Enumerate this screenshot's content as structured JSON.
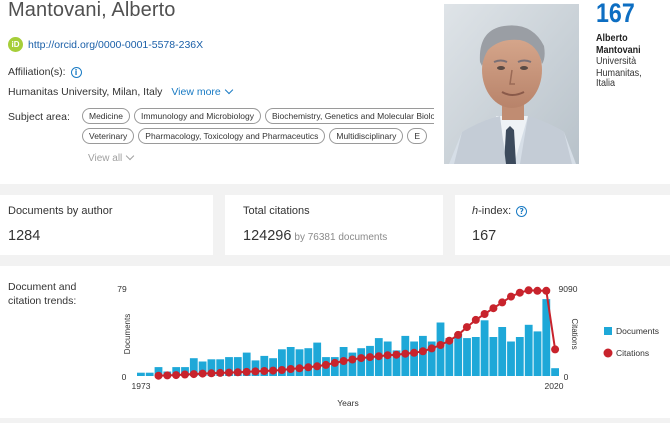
{
  "author": {
    "name": "Mantovani, Alberto",
    "orcid_badge": "iD",
    "orcid_url": "http://orcid.org/0000-0001-5578-236X",
    "affiliation_label": "Affiliation(s):",
    "affiliation_info_icon": "i",
    "affiliation": "Humanitas University, Milan, Italy",
    "view_more": "View more",
    "subject_label": "Subject area:",
    "subject_rows": [
      [
        "Medicine",
        "Immunology and Microbiology",
        "Biochemistry, Genetics and Molecular Biology"
      ],
      [
        "Veterinary",
        "Pharmacology, Toxicology and Pharmaceutics",
        "Multidisciplinary",
        "E"
      ]
    ],
    "view_all": "View all"
  },
  "stamp": {
    "number": "167",
    "first_name": "Alberto",
    "last_name": "Mantovani",
    "affiliation_line1": "Università",
    "affiliation_line2": "Humanitas, Italia"
  },
  "metrics": {
    "documents": {
      "title": "Documents by author",
      "value": "1284"
    },
    "citations": {
      "title": "Total citations",
      "value": "124296",
      "sub": "by 76381 documents"
    },
    "hindex": {
      "title_italic": "h",
      "title_rest": "-index:",
      "info_icon": "?",
      "value": "167"
    }
  },
  "trend": {
    "label_line1": "Document and",
    "label_line2": "citation trends:"
  },
  "chart_data": {
    "type": "bar",
    "title": "",
    "xlabel": "Years",
    "ylabel": "Documents",
    "y2label": "Citations",
    "ylim": [
      0,
      79
    ],
    "y2lim": [
      0,
      9090
    ],
    "yticks": [
      "0",
      "79"
    ],
    "y2ticks": [
      "0",
      "9090"
    ],
    "xtick_labels": [
      "1973",
      "2020"
    ],
    "legend_position": "right",
    "colors": {
      "documents": "#1ea8d8",
      "citations": "#c8232c"
    },
    "categories": [
      1973,
      1974,
      1975,
      1976,
      1977,
      1978,
      1979,
      1980,
      1981,
      1982,
      1983,
      1984,
      1985,
      1986,
      1987,
      1988,
      1989,
      1990,
      1991,
      1992,
      1993,
      1994,
      1995,
      1996,
      1997,
      1998,
      1999,
      2000,
      2001,
      2002,
      2003,
      2004,
      2005,
      2006,
      2007,
      2008,
      2009,
      2010,
      2011,
      2012,
      2013,
      2014,
      2015,
      2016,
      2017,
      2018,
      2019,
      2020
    ],
    "series": [
      {
        "name": "Documents",
        "kind": "bar",
        "axis": "left",
        "values": [
          3,
          3,
          8,
          4,
          8,
          8,
          16,
          13,
          15,
          15,
          17,
          17,
          21,
          14,
          18,
          16,
          24,
          26,
          24,
          25,
          30,
          17,
          17,
          26,
          21,
          25,
          27,
          34,
          31,
          23,
          36,
          31,
          36,
          31,
          48,
          34,
          38,
          34,
          35,
          50,
          35,
          44,
          31,
          35,
          46,
          40,
          69,
          7
        ]
      },
      {
        "name": "Citations",
        "kind": "line",
        "axis": "right",
        "values": [
          0,
          0,
          30,
          60,
          90,
          150,
          200,
          250,
          280,
          320,
          350,
          380,
          420,
          480,
          520,
          560,
          620,
          720,
          800,
          900,
          1000,
          1150,
          1350,
          1550,
          1700,
          1850,
          1950,
          2050,
          2150,
          2200,
          2300,
          2400,
          2550,
          2850,
          3200,
          3650,
          4250,
          5050,
          5800,
          6400,
          7000,
          7600,
          8200,
          8600,
          8850,
          8800,
          8800,
          2750
        ]
      }
    ]
  }
}
